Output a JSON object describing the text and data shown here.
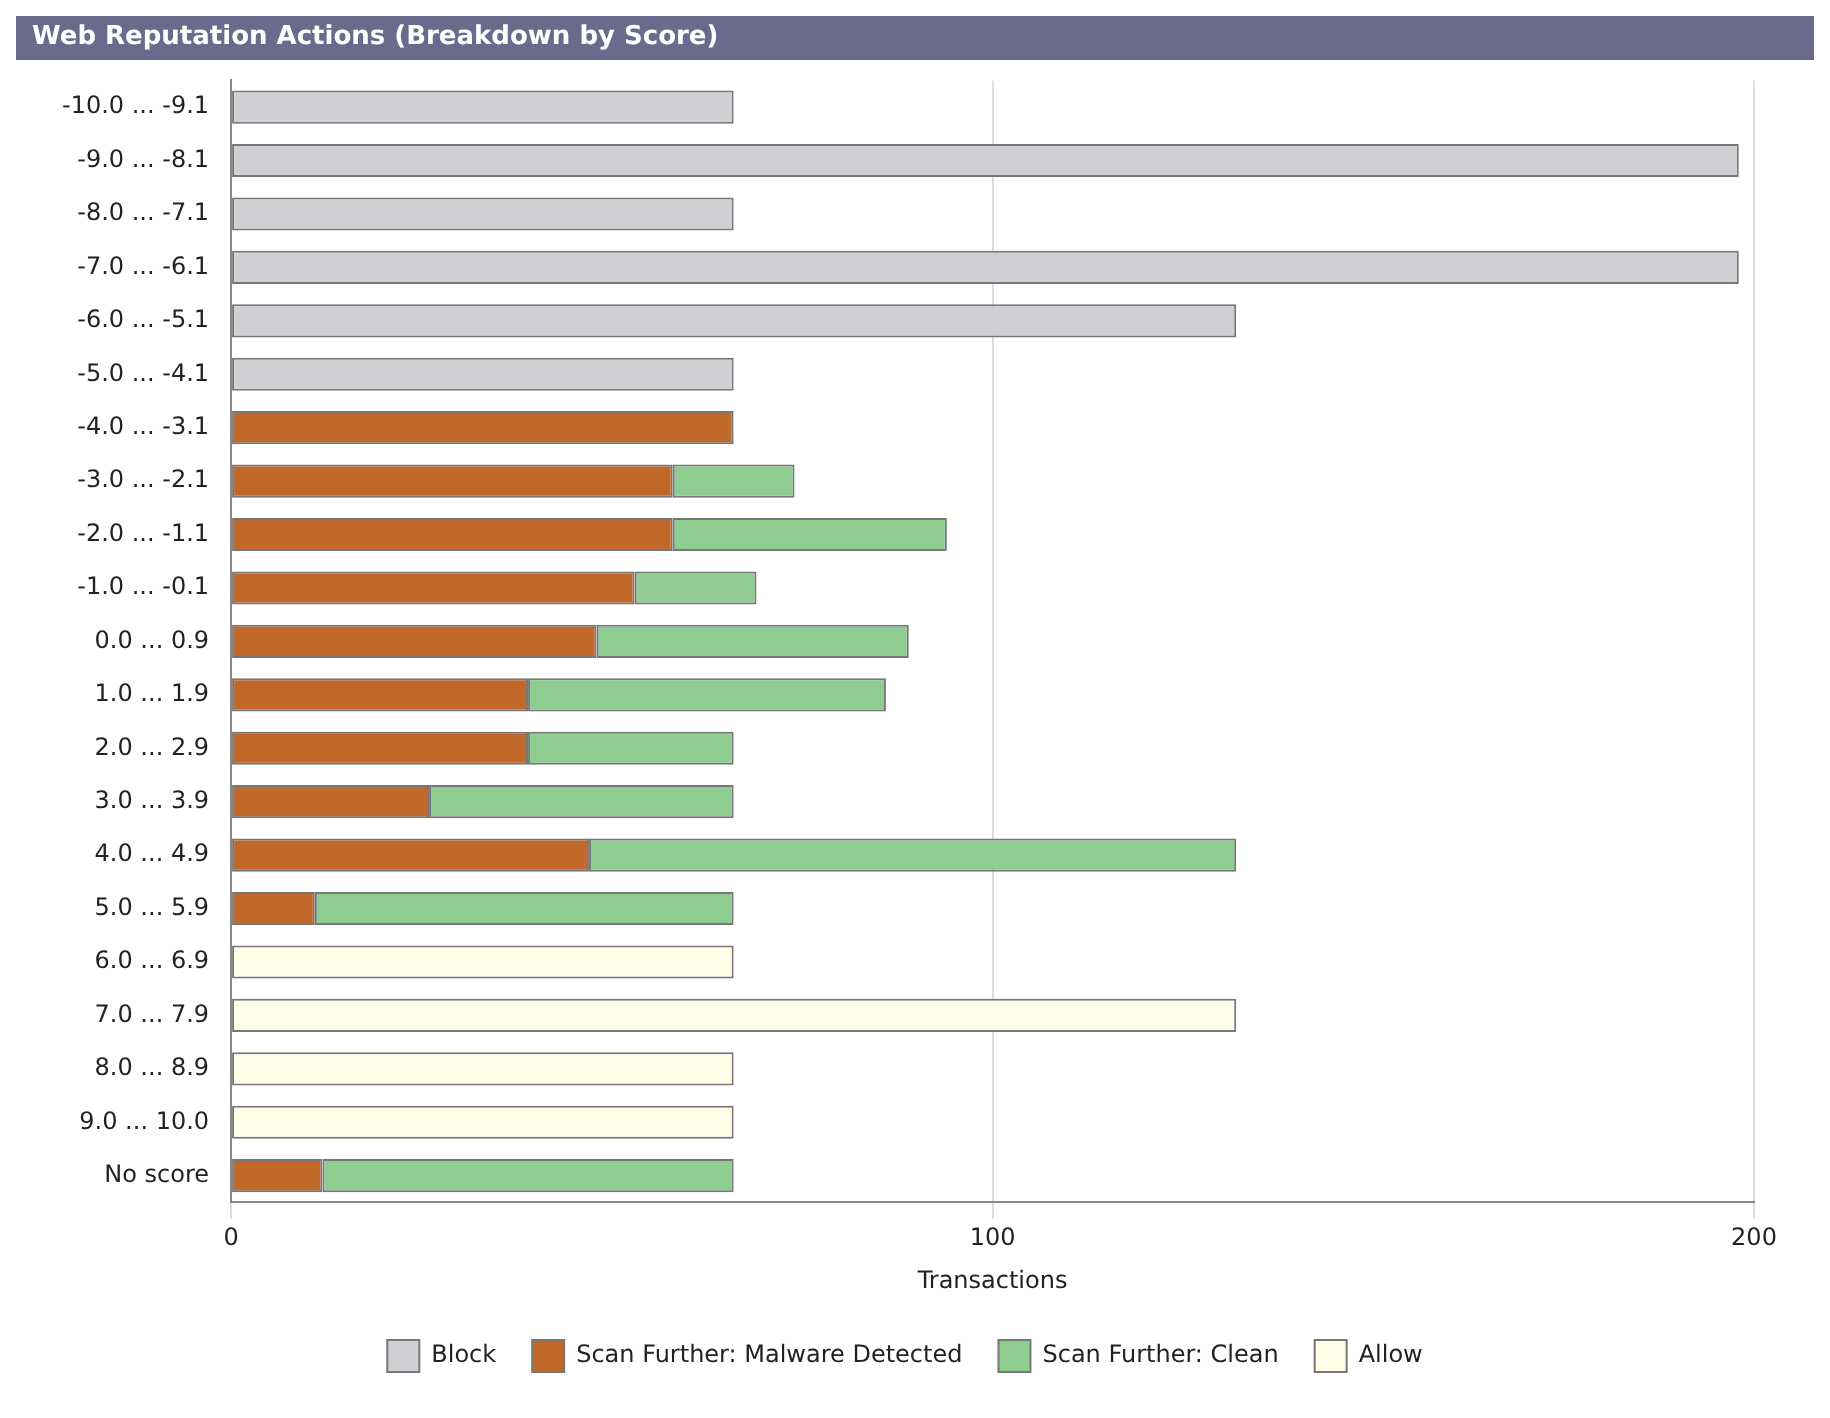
{
  "chart_data": {
    "type": "bar",
    "title": "Web Reputation Actions (Breakdown by Score)",
    "xlabel": "Transactions",
    "orientation": "horizontal",
    "stacked": true,
    "categories": [
      "-10.0 ... -9.1",
      "-9.0 ... -8.1",
      "-8.0 ... -7.1",
      "-7.0 ... -6.1",
      "-6.0 ... -5.1",
      "-5.0 ... -4.1",
      "-4.0 ... -3.1",
      "-3.0 ... -2.1",
      "-2.0 ... -1.1",
      "-1.0 ... -0.1",
      "0.0 ... 0.9",
      "1.0 ... 1.9",
      "2.0 ... 2.9",
      "3.0 ... 3.9",
      "4.0 ... 4.9",
      "5.0 ... 5.9",
      "6.0 ... 6.9",
      "7.0 ... 7.9",
      "8.0 ... 8.9",
      "9.0 ... 10.0",
      "No score"
    ],
    "series": [
      {
        "name": "Block",
        "color": "#d0d0d4",
        "values": [
          66,
          198,
          66,
          198,
          132,
          66,
          null,
          null,
          null,
          null,
          null,
          null,
          null,
          null,
          null,
          null,
          null,
          null,
          null,
          null,
          null
        ]
      },
      {
        "name": "Scan Further: Malware Detected",
        "color": "#c0692a",
        "values": [
          null,
          null,
          null,
          null,
          null,
          null,
          66,
          58,
          58,
          53,
          48,
          39,
          39,
          26,
          47,
          11,
          null,
          null,
          null,
          null,
          12
        ]
      },
      {
        "name": "Scan Further: Clean",
        "color": "#8fcc8f",
        "values": [
          null,
          null,
          null,
          null,
          null,
          null,
          null,
          16,
          36,
          16,
          41,
          47,
          27,
          40,
          85,
          55,
          null,
          null,
          null,
          null,
          54
        ]
      },
      {
        "name": "Allow",
        "color": "#fdfde8",
        "values": [
          null,
          null,
          null,
          null,
          null,
          null,
          null,
          null,
          null,
          null,
          null,
          null,
          null,
          null,
          null,
          null,
          66,
          132,
          66,
          66,
          null
        ]
      }
    ],
    "xlim": [
      0,
      200
    ],
    "xticks": [
      0,
      100,
      200
    ],
    "grid": "x",
    "legend": "bottom"
  }
}
